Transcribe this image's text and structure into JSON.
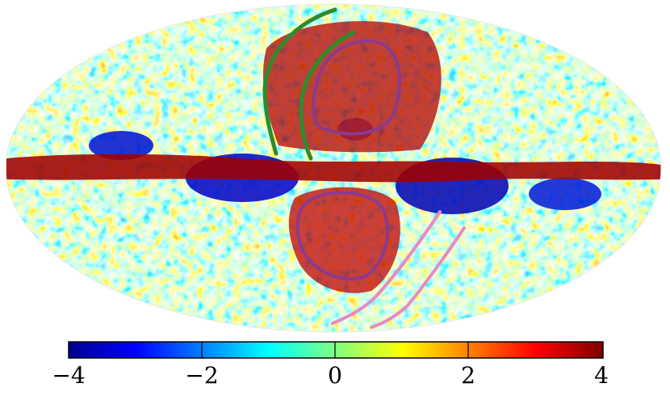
{
  "colorbar": {
    "ticks": [
      "−4",
      "−2",
      "0",
      "2",
      "4"
    ],
    "min": -4,
    "max": 4,
    "colors": [
      "#00008f",
      "#0000ff",
      "#0080ff",
      "#00ffff",
      "#80ff80",
      "#ffff00",
      "#ff8000",
      "#ff0000",
      "#800000"
    ]
  },
  "overlays": [
    {
      "name": "north-bubble-contour",
      "color": "#8b3a8f"
    },
    {
      "name": "south-bubble-contour",
      "color": "#8b3a8f"
    },
    {
      "name": "north-outer-arc",
      "color": "#2e8b2e"
    },
    {
      "name": "north-inner-arc",
      "color": "#2e8b2e"
    },
    {
      "name": "south-arc",
      "color": "#e78ac3"
    }
  ]
}
